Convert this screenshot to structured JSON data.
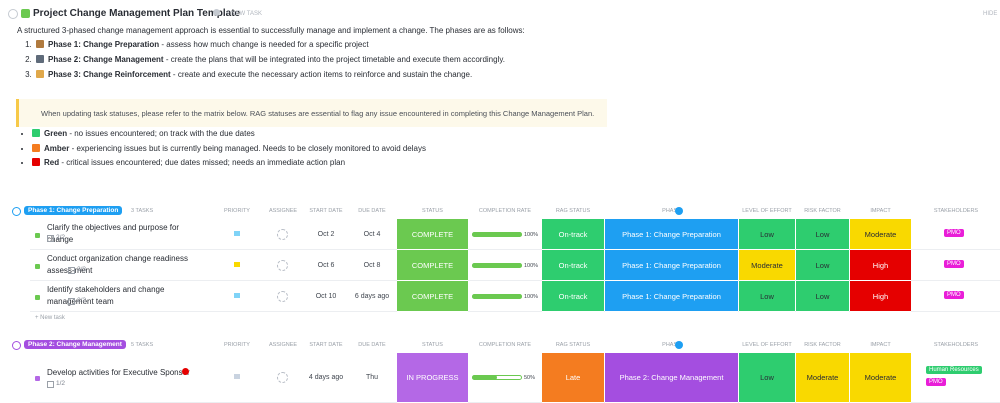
{
  "header": {
    "title": "Project Change Management Plan Template",
    "new_task": "+ NEW TASK",
    "hide": "HIDE"
  },
  "intro": "A structured 3-phased change management approach is essential to successfully manage and implement a change. The phases are as follows:",
  "phases": [
    {
      "name": "Phase 1: Change Preparation",
      "text": " - assess how much change is needed for a specific project"
    },
    {
      "name": "Phase 2: Change Management",
      "text": " - create the plans that will be integrated into the project timetable and execute them accordingly."
    },
    {
      "name": "Phase 3: Change Reinforcement",
      "text": " - create and execute the necessary action items to reinforce and sustain the change."
    }
  ],
  "callout": "When updating task statuses, please refer to the matrix below. RAG statuses are essential to flag any issue encountered in completing this Change Management Plan.",
  "rag_legend": [
    {
      "name": "Green",
      "color": "#2ecd6f",
      "text": " - no issues encountered; on track with the due dates"
    },
    {
      "name": "Amber",
      "color": "#f47c20",
      "text": " - experiencing issues but is currently being managed. Needs to be closely monitored to avoid delays"
    },
    {
      "name": "Red",
      "color": "#e50000",
      "text": " - critical issues encountered; due dates missed; needs an immediate action plan"
    }
  ],
  "columns": [
    "PRIORITY",
    "ASSIGNEE",
    "START DATE",
    "DUE DATE",
    "STATUS",
    "COMPLETION RATE",
    "RAG STATUS",
    "PHASE",
    "LEVEL OF EFFORT",
    "RISK FACTOR",
    "IMPACT",
    "STAKEHOLDERS"
  ],
  "groups": [
    {
      "name": "Phase 1: Change Preparation",
      "color": "#1e9ff2",
      "count": "3 TASKS",
      "new_task": "+ New task",
      "tasks": [
        {
          "name": "Clarify the objectives and purpose for change",
          "subtasks": "2/2",
          "priority_color": "#7fd3f7",
          "start": "Oct 2",
          "due": "Oct 4",
          "status": "COMPLETE",
          "status_color": "#6bc950",
          "completion_rate": 100,
          "completion_rate_label": "100%",
          "rag": "On-track",
          "rag_color": "#2ecd6f",
          "phase": "Phase 1: Change Preparation",
          "phase_color": "#1e9ff2",
          "effort": "Low",
          "effort_color": "#2ecd6f",
          "risk": "Low",
          "risk_color": "#2ecd6f",
          "impact": "Moderate",
          "impact_color": "#f9d900",
          "stakeholders": [
            {
              "name": "PMO",
              "color": "#e91ed8"
            }
          ]
        },
        {
          "name": "Conduct organization change readiness assess-ment",
          "subtasks": "3/3",
          "priority_color": "#f9d900",
          "start": "Oct 6",
          "due": "Oct 8",
          "status": "COMPLETE",
          "status_color": "#6bc950",
          "completion_rate": 100,
          "completion_rate_label": "100%",
          "rag": "On-track",
          "rag_color": "#2ecd6f",
          "phase": "Phase 1: Change Preparation",
          "phase_color": "#1e9ff2",
          "effort": "Moderate",
          "effort_color": "#f9d900",
          "risk": "Low",
          "risk_color": "#2ecd6f",
          "impact": "High",
          "impact_color": "#e50000",
          "stakeholders": [
            {
              "name": "PMO",
              "color": "#e91ed8"
            }
          ]
        },
        {
          "name": "Identify stakeholders and change management team",
          "subtasks": "2/2",
          "priority_color": "#7fd3f7",
          "start": "Oct 10",
          "due": "6 days ago",
          "status": "COMPLETE",
          "status_color": "#6bc950",
          "completion_rate": 100,
          "completion_rate_label": "100%",
          "rag": "On-track",
          "rag_color": "#2ecd6f",
          "phase": "Phase 1: Change Preparation",
          "phase_color": "#1e9ff2",
          "effort": "Low",
          "effort_color": "#2ecd6f",
          "risk": "Low",
          "risk_color": "#2ecd6f",
          "impact": "High",
          "impact_color": "#e50000",
          "stakeholders": [
            {
              "name": "PMO",
              "color": "#e91ed8"
            }
          ]
        }
      ]
    },
    {
      "name": "Phase 2: Change Management",
      "color": "#a44ee0",
      "count": "5 TASKS",
      "tasks": [
        {
          "name": "Develop activities for Executive Sponsor",
          "subtasks": "1/2",
          "priority_color": "#c9d3e0",
          "start": "4 days ago",
          "due": "Thu",
          "status": "IN PROGRESS",
          "status_color": "#b468e6",
          "completion_rate": 50,
          "completion_rate_label": "50%",
          "rag": "Late",
          "rag_color": "#f47c20",
          "phase": "Phase 2: Change Management",
          "phase_color": "#a44ee0",
          "effort": "Low",
          "effort_color": "#2ecd6f",
          "risk": "Moderate",
          "risk_color": "#f9d900",
          "impact": "Moderate",
          "impact_color": "#f9d900",
          "stakeholders": [
            {
              "name": "Human Resources",
              "color": "#2ecd6f"
            },
            {
              "name": "PMO",
              "color": "#e91ed8"
            }
          ]
        }
      ]
    }
  ]
}
